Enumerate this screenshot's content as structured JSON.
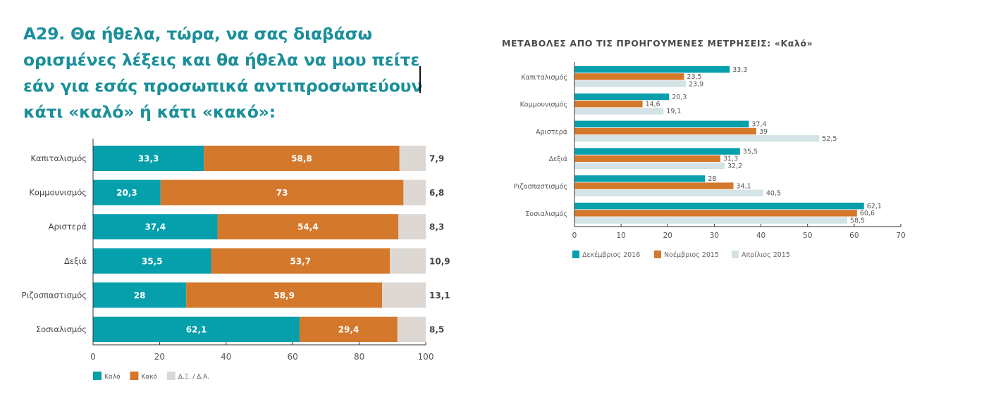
{
  "page": {
    "title": "Α29. Θα ήθελα, τώρα, να σας διαβάσω ορισμένες λέξεις και θα ήθελα να μου πείτε εάν για εσάς προσωπικά αντιπροσωπεύουν κάτι «καλό» ή κάτι «κακό»:"
  },
  "colors": {
    "teal": "#06a0ac",
    "orange": "#d4782c",
    "gray": "#ddd8d3",
    "lightblue": "#d3e3e6",
    "title": "#1a8f9a",
    "axis": "#333333",
    "text": "#444444"
  },
  "chart_data": [
    {
      "type": "bar",
      "orientation": "horizontal",
      "stacked": true,
      "title": "",
      "categories": [
        "Καπιταλισμός",
        "Κομμουνισμός",
        "Αριστερά",
        "Δεξιά",
        "Ριζοσπαστισμός",
        "Σοσιαλισμός"
      ],
      "series": [
        {
          "name": "Καλό",
          "color": "#06a0ac",
          "values": [
            33.3,
            20.3,
            37.4,
            35.5,
            28,
            62.1
          ],
          "labels": [
            "33,3",
            "20,3",
            "37,4",
            "35,5",
            "28",
            "62,1"
          ]
        },
        {
          "name": "Κακό",
          "color": "#d4782c",
          "values": [
            58.8,
            73,
            54.4,
            53.7,
            58.9,
            29.4
          ],
          "labels": [
            "58,8",
            "73",
            "54,4",
            "53,7",
            "58,9",
            "29,4"
          ]
        },
        {
          "name": "Δ.Ξ. / Δ.Α.",
          "color": "#ddd8d3",
          "values": [
            7.9,
            6.8,
            8.3,
            10.9,
            13.1,
            8.5
          ],
          "labels": [
            "7,9",
            "6,8",
            "8,3",
            "10,9",
            "13,1",
            "8,5"
          ]
        }
      ],
      "xlim": [
        0,
        100
      ],
      "xticks": [
        0,
        20,
        40,
        60,
        80,
        100
      ],
      "xlabel": "",
      "ylabel": "",
      "grid": false,
      "legend": "bottom-left"
    },
    {
      "type": "bar",
      "orientation": "horizontal",
      "stacked": false,
      "title": "ΜΕΤΑΒΟΛΕΣ ΑΠΟ ΤΙΣ ΠΡΟΗΓΟΥΜΕΝΕΣ ΜΕΤΡΗΣΕΙΣ: «Καλό»",
      "categories": [
        "Καπιταλισμός",
        "Κομμουνισμός",
        "Αριστερά",
        "Δεξιά",
        "Ριζοσπαστισμός",
        "Σοσιαλισμός"
      ],
      "series": [
        {
          "name": "Δεκέμβριος 2016",
          "color": "#06a0ac",
          "values": [
            33.3,
            20.3,
            37.4,
            35.5,
            28,
            62.1
          ],
          "labels": [
            "33,3",
            "20,3",
            "37,4",
            "35,5",
            "28",
            "62,1"
          ]
        },
        {
          "name": "Νοέμβριος 2015",
          "color": "#d4782c",
          "values": [
            23.5,
            14.6,
            39,
            31.3,
            34.1,
            60.6
          ],
          "labels": [
            "23,5",
            "14,6",
            "39",
            "31,3",
            "34,1",
            "60,6"
          ]
        },
        {
          "name": "Απρίλιος 2015",
          "color": "#d3e3e6",
          "values": [
            23.9,
            19.1,
            52.5,
            32.2,
            40.5,
            58.5
          ],
          "labels": [
            "23,9",
            "19,1",
            "52,5",
            "32,2",
            "40,5",
            "58,5"
          ]
        }
      ],
      "xlim": [
        0,
        70
      ],
      "xticks": [
        0,
        10,
        20,
        30,
        40,
        50,
        60,
        70
      ],
      "xlabel": "",
      "ylabel": "",
      "grid": false,
      "legend": "bottom-left"
    }
  ]
}
